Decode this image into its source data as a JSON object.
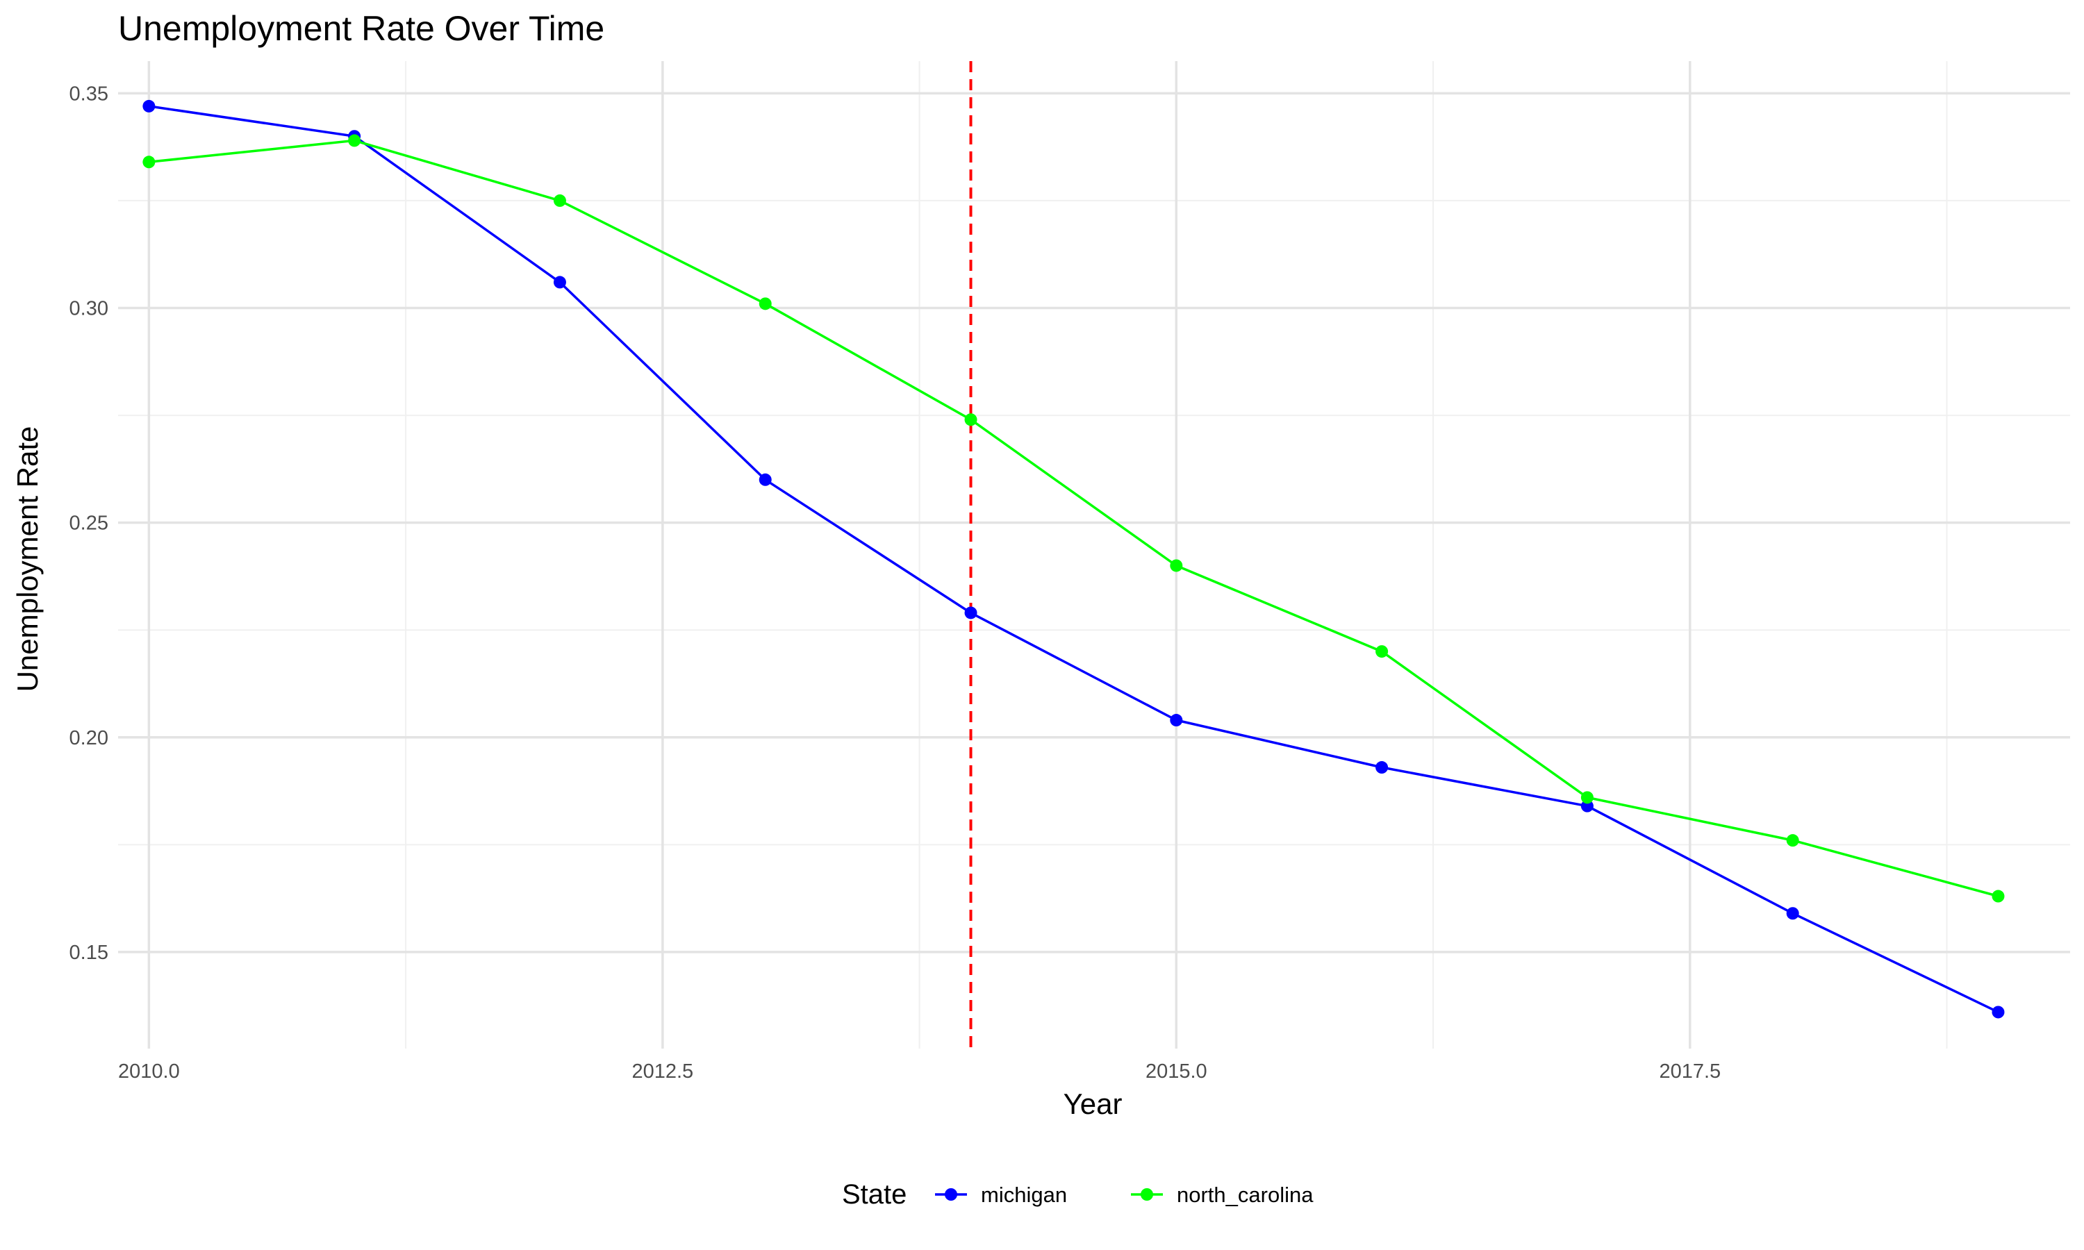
{
  "chart_data": {
    "type": "line",
    "title": "Unemployment Rate Over Time",
    "xlabel": "Year",
    "ylabel": "Unemployment Rate",
    "xlim": [
      2009.85,
      2019.35
    ],
    "ylim": [
      0.1275,
      0.3575
    ],
    "x_ticks": [
      2010.0,
      2012.5,
      2015.0,
      2017.5
    ],
    "x_tick_labels": [
      "2010.0",
      "2012.5",
      "2015.0",
      "2017.5"
    ],
    "y_ticks": [
      0.15,
      0.2,
      0.25,
      0.3,
      0.35
    ],
    "y_tick_labels": [
      "0.15",
      "0.20",
      "0.25",
      "0.30",
      "0.35"
    ],
    "x": [
      2010,
      2011,
      2012,
      2013,
      2014,
      2015,
      2016,
      2017,
      2018,
      2019
    ],
    "series": [
      {
        "name": "michigan",
        "color": "#0000ff",
        "values": [
          0.347,
          0.34,
          0.306,
          0.26,
          0.229,
          0.204,
          0.193,
          0.184,
          0.159,
          0.136
        ]
      },
      {
        "name": "north_carolina",
        "color": "#00ff00",
        "values": [
          0.334,
          0.339,
          0.325,
          0.301,
          0.274,
          0.24,
          0.22,
          0.186,
          0.176,
          0.163
        ]
      }
    ],
    "vline": {
      "x": 2014,
      "color": "#ff0000",
      "style": "dashed"
    },
    "grid": true,
    "legend": {
      "title": "State",
      "position": "bottom"
    }
  }
}
